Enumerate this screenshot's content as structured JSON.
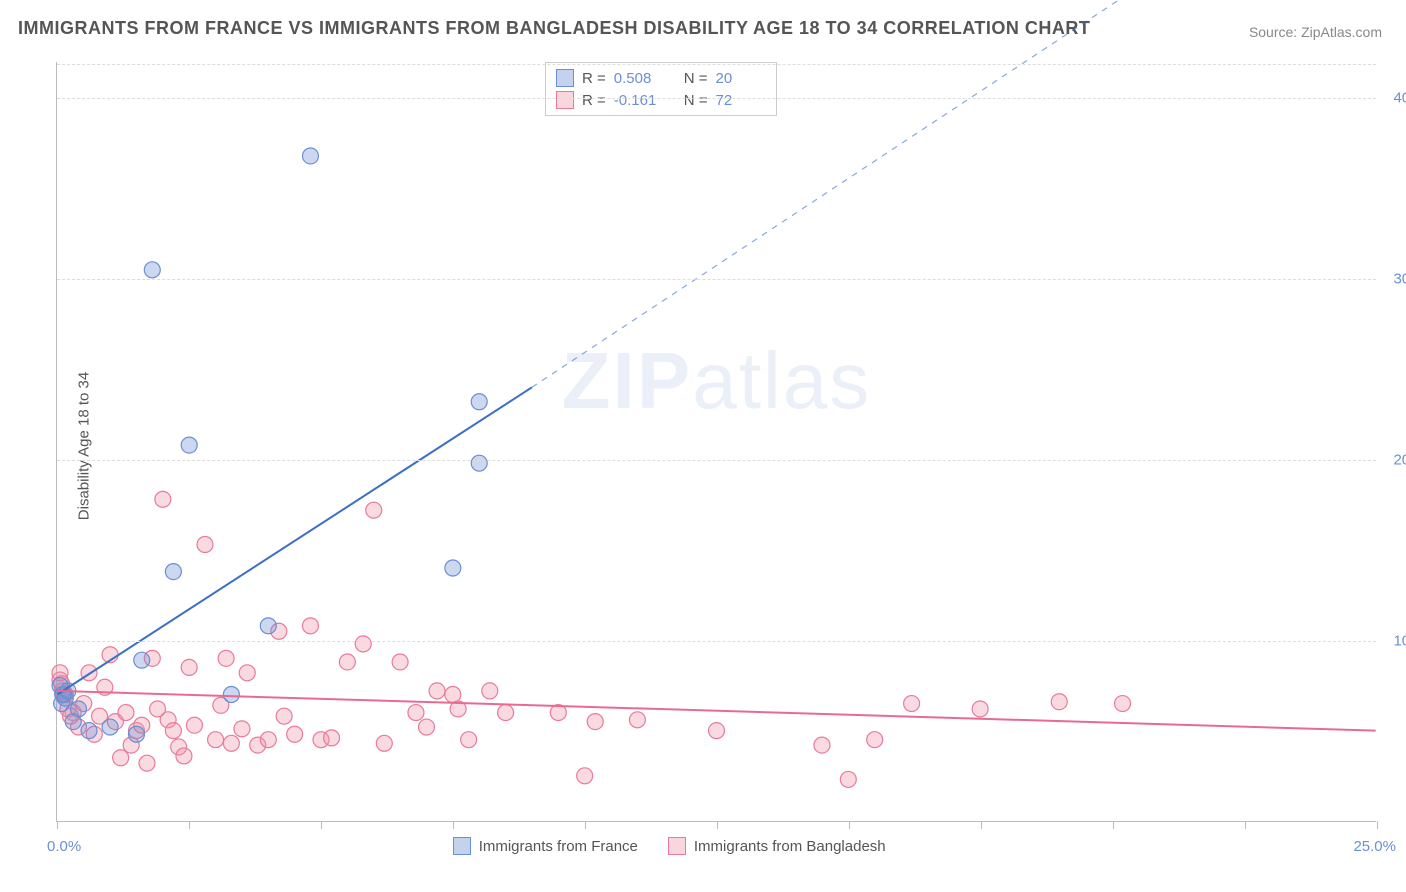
{
  "title": "IMMIGRANTS FROM FRANCE VS IMMIGRANTS FROM BANGLADESH DISABILITY AGE 18 TO 34 CORRELATION CHART",
  "source": "Source: ZipAtlas.com",
  "ylabel": "Disability Age 18 to 34",
  "watermark_a": "ZIP",
  "watermark_b": "atlas",
  "chart": {
    "type": "scatter",
    "xlim": [
      0,
      25
    ],
    "ylim": [
      0,
      42
    ],
    "x_ticks": [
      0,
      2.5,
      5,
      7.5,
      10,
      12.5,
      15,
      17.5,
      20,
      22.5,
      25
    ],
    "x_tick_labels_shown": {
      "0": "0.0%",
      "25": "25.0%"
    },
    "y_ticks": [
      10,
      20,
      30,
      40
    ],
    "y_tick_labels": [
      "10.0%",
      "20.0%",
      "30.0%",
      "40.0%"
    ],
    "grid_color": "#dddddd",
    "axis_color": "#bbbbbb",
    "background_color": "#ffffff",
    "marker_radius": 8,
    "marker_stroke_width": 1.2,
    "line_width": 2,
    "series": [
      {
        "name": "Immigrants from France",
        "color_fill": "rgba(107,143,212,0.35)",
        "color_stroke": "#6b8fd4",
        "line_color": "#3b6fc4",
        "r": "0.508",
        "n": "20",
        "points": [
          [
            0.1,
            7.0
          ],
          [
            0.2,
            7.2
          ],
          [
            0.15,
            6.8
          ],
          [
            0.3,
            5.5
          ],
          [
            0.6,
            5.0
          ],
          [
            1.0,
            5.2
          ],
          [
            1.5,
            4.8
          ],
          [
            1.6,
            8.9
          ],
          [
            2.2,
            13.8
          ],
          [
            2.5,
            20.8
          ],
          [
            3.3,
            7.0
          ],
          [
            4.0,
            10.8
          ],
          [
            4.8,
            36.8
          ],
          [
            1.8,
            30.5
          ],
          [
            8.0,
            23.2
          ],
          [
            8.0,
            19.8
          ],
          [
            7.5,
            14.0
          ],
          [
            0.05,
            7.5
          ],
          [
            0.08,
            6.5
          ],
          [
            0.4,
            6.2
          ]
        ],
        "trend": {
          "x1": 0,
          "y1": 7.0,
          "x2": 9.0,
          "y2": 24.0,
          "dashed_from_x": 9.0,
          "dashed_to": [
            22.5,
            50.0
          ]
        }
      },
      {
        "name": "Immigrants from Bangladesh",
        "color_fill": "rgba(240,150,170,0.35)",
        "color_stroke": "#e97a9a",
        "line_color": "#e86a94",
        "r": "-0.161",
        "n": "72",
        "points": [
          [
            0.05,
            7.8
          ],
          [
            0.1,
            7.2
          ],
          [
            0.15,
            7.0
          ],
          [
            0.2,
            6.2
          ],
          [
            0.3,
            6.0
          ],
          [
            0.4,
            5.2
          ],
          [
            0.5,
            6.5
          ],
          [
            0.6,
            8.2
          ],
          [
            0.8,
            5.8
          ],
          [
            0.9,
            7.4
          ],
          [
            1.0,
            9.2
          ],
          [
            1.1,
            5.5
          ],
          [
            1.2,
            3.5
          ],
          [
            1.3,
            6.0
          ],
          [
            1.4,
            4.2
          ],
          [
            1.5,
            5.0
          ],
          [
            1.6,
            5.3
          ],
          [
            1.8,
            9.0
          ],
          [
            2.0,
            17.8
          ],
          [
            2.1,
            5.6
          ],
          [
            2.2,
            5.0
          ],
          [
            2.3,
            4.1
          ],
          [
            2.5,
            8.5
          ],
          [
            2.6,
            5.3
          ],
          [
            2.8,
            15.3
          ],
          [
            3.0,
            4.5
          ],
          [
            3.2,
            9.0
          ],
          [
            3.3,
            4.3
          ],
          [
            3.5,
            5.1
          ],
          [
            3.6,
            8.2
          ],
          [
            3.8,
            4.2
          ],
          [
            4.0,
            4.5
          ],
          [
            4.2,
            10.5
          ],
          [
            4.5,
            4.8
          ],
          [
            4.8,
            10.8
          ],
          [
            5.0,
            4.5
          ],
          [
            5.5,
            8.8
          ],
          [
            5.8,
            9.8
          ],
          [
            6.0,
            17.2
          ],
          [
            6.2,
            4.3
          ],
          [
            6.5,
            8.8
          ],
          [
            6.8,
            6.0
          ],
          [
            7.0,
            5.2
          ],
          [
            7.2,
            7.2
          ],
          [
            7.5,
            7.0
          ],
          [
            7.6,
            6.2
          ],
          [
            7.8,
            4.5
          ],
          [
            8.2,
            7.2
          ],
          [
            8.5,
            6.0
          ],
          [
            9.5,
            6.0
          ],
          [
            10.0,
            2.5
          ],
          [
            10.2,
            5.5
          ],
          [
            11.0,
            5.6
          ],
          [
            12.5,
            5.0
          ],
          [
            14.5,
            4.2
          ],
          [
            15.0,
            2.3
          ],
          [
            15.5,
            4.5
          ],
          [
            16.2,
            6.5
          ],
          [
            17.5,
            6.2
          ],
          [
            19.0,
            6.6
          ],
          [
            20.2,
            6.5
          ],
          [
            1.7,
            3.2
          ],
          [
            2.4,
            3.6
          ],
          [
            0.05,
            8.2
          ],
          [
            0.08,
            7.6
          ],
          [
            0.12,
            7.0
          ],
          [
            0.25,
            5.8
          ],
          [
            0.7,
            4.8
          ],
          [
            1.9,
            6.2
          ],
          [
            3.1,
            6.4
          ],
          [
            4.3,
            5.8
          ],
          [
            5.2,
            4.6
          ]
        ],
        "trend": {
          "x1": 0,
          "y1": 7.2,
          "x2": 25,
          "y2": 5.0
        }
      }
    ]
  },
  "legend_bottom": [
    {
      "swatch": "blue",
      "label": "Immigrants from France"
    },
    {
      "swatch": "pink",
      "label": "Immigrants from Bangladesh"
    }
  ]
}
